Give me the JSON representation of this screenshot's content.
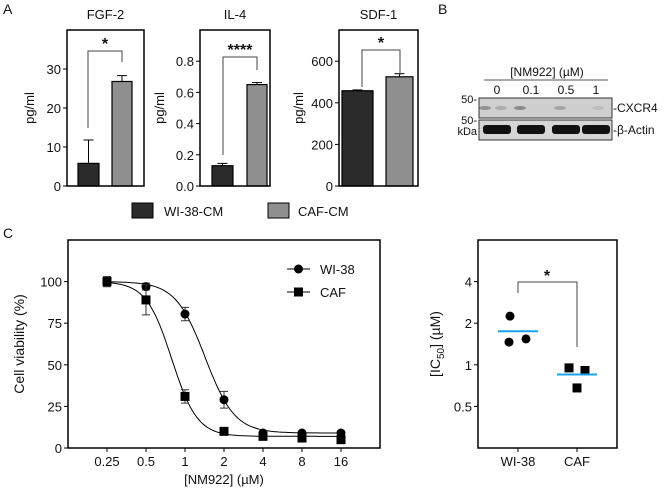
{
  "panels": {
    "a": "A",
    "b": "B",
    "c": "C"
  },
  "colors": {
    "wi38": "#2b2b2b",
    "caf": "#8f8f8f",
    "mean_line": "#1aa3ec",
    "axis": "#000000"
  },
  "chart_data": [
    {
      "type": "bar",
      "title": "FGF-2",
      "ylabel": "pg/ml",
      "ylim": [
        0,
        40
      ],
      "yticks": [
        0,
        10,
        20,
        30
      ],
      "categories": [
        "WI-38-CM",
        "CAF-CM"
      ],
      "values": [
        5.8,
        26.8
      ],
      "error_upper": [
        11.8,
        28.3
      ],
      "significance": "*"
    },
    {
      "type": "bar",
      "title": "IL-4",
      "ylabel": "pg/ml",
      "ylim": [
        0,
        1.0
      ],
      "yticks": [
        0.0,
        0.2,
        0.4,
        0.6,
        0.8
      ],
      "tick_format": "0.0",
      "categories": [
        "WI-38-CM",
        "CAF-CM"
      ],
      "values": [
        0.13,
        0.65
      ],
      "error_upper": [
        0.145,
        0.663
      ],
      "significance": "****"
    },
    {
      "type": "bar",
      "title": "SDF-1",
      "ylabel": "pg/ml",
      "ylim": [
        0,
        750
      ],
      "yticks": [
        0,
        200,
        400,
        600
      ],
      "categories": [
        "WI-38-CM",
        "CAF-CM"
      ],
      "values": [
        458,
        525
      ],
      "error_upper": [
        462,
        540
      ],
      "significance": "*"
    },
    {
      "type": "line",
      "xlabel": "[NM922] (µM)",
      "ylabel": "Cell viability (%)",
      "xscale": "log2",
      "xlim": [
        0.125,
        32
      ],
      "ylim": [
        0,
        125
      ],
      "xticks": [
        0.25,
        0.5,
        1,
        2,
        4,
        8,
        16
      ],
      "xtick_labels": [
        "0.25",
        "0.5",
        "1",
        "2",
        "4",
        "8",
        "16"
      ],
      "yticks": [
        0,
        25,
        50,
        75,
        100
      ],
      "legend": "top-right",
      "series": [
        {
          "name": "WI-38",
          "marker": "circle",
          "x": [
            0.25,
            0.5,
            1,
            2,
            4,
            8,
            16
          ],
          "y": [
            100,
            97,
            80.5,
            29,
            9,
            9,
            9
          ],
          "err": [
            3,
            2,
            4,
            5,
            1,
            1,
            1
          ],
          "fit": {
            "top": 100,
            "bottom": 9,
            "ic50": 1.43,
            "hill": 3.8
          }
        },
        {
          "name": "CAF",
          "marker": "square",
          "x": [
            0.25,
            0.5,
            1,
            2,
            4,
            8,
            16
          ],
          "y": [
            100,
            89,
            31,
            10,
            7,
            6,
            5
          ],
          "err": [
            3,
            9,
            4,
            1,
            1,
            1,
            1
          ],
          "fit": {
            "top": 100,
            "bottom": 7,
            "ic50": 0.79,
            "hill": 4.4
          }
        }
      ]
    },
    {
      "type": "scatter",
      "ylabel_pre": "[IC",
      "ylabel_sub": "50",
      "ylabel_post": "] (µM)",
      "yscale": "log2",
      "ylim": [
        0.25,
        8
      ],
      "yticks": [
        0.5,
        1,
        2,
        4
      ],
      "ytick_labels": [
        "0.5",
        "1",
        "2",
        "4"
      ],
      "categories": [
        "WI-38",
        "CAF"
      ],
      "points": [
        [
          2.25,
          1.46,
          1.54
        ],
        [
          0.95,
          0.91,
          0.68
        ]
      ],
      "means": [
        1.75,
        0.85
      ],
      "significance": "*"
    }
  ],
  "legend_a": [
    "WI-38-CM",
    "CAF-CM"
  ],
  "blot": {
    "header": "[NM922] (µM)",
    "lanes": [
      "0",
      "0.1",
      "0.5",
      "1"
    ],
    "markers": [
      "50-",
      "50-"
    ],
    "unit": "kDa",
    "bands": [
      "-CXCR4",
      "-β-Actin"
    ]
  }
}
